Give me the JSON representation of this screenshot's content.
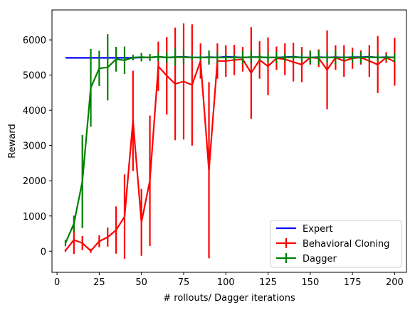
{
  "chart_data": {
    "type": "line",
    "title": "",
    "xlabel": "# rollouts/ Dagger iterations",
    "ylabel": "Reward",
    "xlim": [
      -3,
      207
    ],
    "ylim": [
      -600,
      6850
    ],
    "xticks": [
      0,
      25,
      50,
      75,
      100,
      125,
      150,
      175,
      200
    ],
    "yticks": [
      0,
      1000,
      2000,
      3000,
      4000,
      5000,
      6000
    ],
    "grid": false,
    "legend_position": "lower right",
    "series": [
      {
        "name": "Expert",
        "color": "#0000ff",
        "errorbars": false,
        "x": [
          5,
          10,
          15,
          20,
          25,
          30,
          35,
          40,
          45,
          50,
          55,
          60,
          65,
          70,
          75,
          80,
          85,
          90,
          95,
          100,
          105,
          110,
          115,
          120,
          125,
          130,
          135,
          140,
          145,
          150,
          155,
          160,
          165,
          170,
          175,
          180,
          185,
          190,
          195,
          200
        ],
        "y": [
          5490,
          5490,
          5490,
          5490,
          5490,
          5490,
          5490,
          5490,
          5490,
          5500,
          5500,
          5520,
          5500,
          5510,
          5520,
          5500,
          5500,
          5510,
          5500,
          5520,
          5510,
          5500,
          5510,
          5510,
          5500,
          5500,
          5510,
          5520,
          5500,
          5500,
          5510,
          5500,
          5510,
          5500,
          5510,
          5510,
          5520,
          5500,
          5510,
          5500
        ]
      },
      {
        "name": "Behavioral Cloning",
        "color": "#ff0000",
        "errorbars": true,
        "x": [
          5,
          10,
          15,
          20,
          25,
          30,
          35,
          40,
          45,
          50,
          55,
          60,
          65,
          70,
          75,
          80,
          85,
          90,
          95,
          100,
          105,
          110,
          115,
          120,
          125,
          130,
          135,
          140,
          145,
          150,
          155,
          160,
          165,
          170,
          175,
          180,
          185,
          190,
          195,
          200
        ],
        "y": [
          20,
          320,
          230,
          10,
          280,
          400,
          600,
          980,
          3700,
          820,
          2000,
          5250,
          4980,
          4750,
          4820,
          4720,
          5400,
          2300,
          5400,
          5400,
          5430,
          5450,
          5060,
          5430,
          5250,
          5480,
          5450,
          5370,
          5300,
          5500,
          5480,
          5150,
          5500,
          5400,
          5480,
          5500,
          5400,
          5300,
          5500,
          5380
        ],
        "yerr": [
          40,
          400,
          200,
          60,
          170,
          270,
          670,
          1200,
          1420,
          950,
          1850,
          700,
          1100,
          1600,
          1650,
          1720,
          500,
          2500,
          500,
          450,
          430,
          350,
          1300,
          530,
          820,
          330,
          450,
          550,
          500,
          200,
          250,
          1120,
          350,
          450,
          300,
          200,
          450,
          810,
          150,
          680
        ]
      },
      {
        "name": "Dagger",
        "color": "#008000",
        "errorbars": true,
        "x": [
          5,
          10,
          15,
          20,
          25,
          30,
          35,
          40,
          45,
          50,
          55,
          60,
          65,
          70,
          75,
          80,
          85,
          90,
          95,
          100,
          105,
          110,
          115,
          120,
          125,
          130,
          135,
          140,
          145,
          150,
          155,
          160,
          165,
          170,
          175,
          180,
          185,
          190,
          195,
          200
        ],
        "y": [
          230,
          780,
          1980,
          4640,
          5190,
          5220,
          5450,
          5420,
          5500,
          5510,
          5500,
          5520,
          5500,
          5510,
          5510,
          5500,
          5500,
          5500,
          5500,
          5500,
          5500,
          5500,
          5510,
          5510,
          5500,
          5500,
          5500,
          5510,
          5500,
          5500,
          5500,
          5500,
          5500,
          5500,
          5500,
          5500,
          5510,
          5500,
          5500,
          5500
        ],
        "yerr": [
          90,
          230,
          1320,
          1100,
          500,
          940,
          350,
          390,
          80,
          120,
          100,
          120,
          150,
          250,
          190,
          70,
          70,
          200,
          150,
          80,
          80,
          180,
          180,
          120,
          130,
          160,
          110,
          80,
          120,
          180,
          200,
          140,
          200,
          90,
          150,
          160,
          130,
          110,
          90,
          130
        ]
      }
    ]
  }
}
